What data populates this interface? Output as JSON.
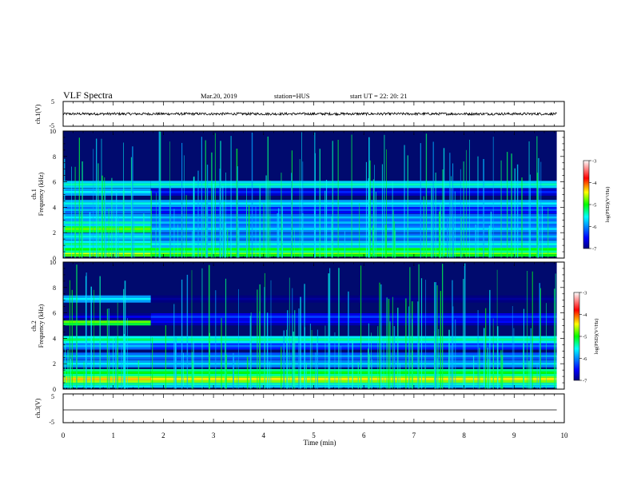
{
  "header": {
    "title": "VLF Spectra",
    "date": "Mar.20, 2019",
    "station": "station=HUS",
    "start": "start  UT =  22: 20: 21"
  },
  "chart_data": [
    {
      "type": "line",
      "name": "ch1-waveform",
      "ylabel": "ch.1(V)",
      "ylim": [
        -5,
        5
      ],
      "yticks": [
        "5",
        "-5"
      ],
      "x_range_min": [
        0,
        9.85
      ],
      "level_v": 0,
      "noise_amplitude_v": 0.5
    },
    {
      "type": "heatmap",
      "name": "ch1-spectrogram",
      "ylabel": "ch.1 Frequency (kHz)",
      "ylim": [
        0,
        10
      ],
      "yticks": [
        "0",
        "2",
        "4",
        "6",
        "8",
        "10"
      ],
      "colorbar": {
        "label": "log(PSD)(V²/Hz)",
        "ticks": [
          "-3",
          "-4",
          "-5",
          "-6",
          "-7"
        ],
        "range": [
          -7,
          -3
        ]
      },
      "bands_khz": [
        {
          "f": 0.3,
          "early": -4.5,
          "late": -4.7
        },
        {
          "f": 0.6,
          "early": -5.0,
          "late": -5.0
        },
        {
          "f": 1.0,
          "early": -5.3,
          "late": -5.5
        },
        {
          "f": 1.6,
          "early": -5.5,
          "late": -5.8
        },
        {
          "f": 2.2,
          "early": -4.8,
          "late": -5.7
        },
        {
          "f": 2.7,
          "early": -5.4,
          "late": -5.8
        },
        {
          "f": 3.1,
          "early": -5.6,
          "late": -5.8
        },
        {
          "f": 3.7,
          "early": -5.8,
          "late": -6.2
        },
        {
          "f": 4.2,
          "early": -5.5,
          "late": -5.6
        },
        {
          "f": 5.1,
          "early": -5.6,
          "late": -6.4
        },
        {
          "f": 5.7,
          "early": -5.4,
          "late": -5.4
        }
      ],
      "regime_change_min": 1.75
    },
    {
      "type": "heatmap",
      "name": "ch2-spectrogram",
      "ylabel": "ch.2 Frequency (kHz)",
      "ylim": [
        0,
        10
      ],
      "yticks": [
        "0",
        "2",
        "4",
        "6",
        "8",
        "10"
      ],
      "colorbar": {
        "label": "log(PSD)(V²/Hz)",
        "ticks": [
          "-3",
          "-4",
          "-5",
          "-6",
          "-7"
        ],
        "range": [
          -7,
          -3
        ]
      },
      "bands_khz": [
        {
          "f": 0.3,
          "early": -5.3,
          "late": -5.4
        },
        {
          "f": 0.7,
          "early": -4.3,
          "late": -4.4
        },
        {
          "f": 1.2,
          "early": -5.0,
          "late": -5.0
        },
        {
          "f": 1.9,
          "early": -5.6,
          "late": -5.7
        },
        {
          "f": 2.5,
          "early": -5.8,
          "late": -5.9
        },
        {
          "f": 3.3,
          "early": -5.8,
          "late": -6.1
        },
        {
          "f": 3.8,
          "early": -5.2,
          "late": -5.3
        },
        {
          "f": 5.2,
          "early": -4.8,
          "late": -6.5
        },
        {
          "f": 5.6,
          "early": -6.6,
          "late": -6.3
        },
        {
          "f": 7.0,
          "early": -5.6,
          "late": -6.9
        }
      ],
      "regime_change_min": 1.75
    },
    {
      "type": "line",
      "name": "ch3-waveform",
      "ylabel": "ch.3(V)",
      "ylim": [
        -5,
        5
      ],
      "yticks": [
        "5",
        "0",
        "-5"
      ],
      "x_range_min": [
        0,
        9.85
      ],
      "level_v": 0,
      "noise_amplitude_v": 0
    }
  ],
  "x_axis": {
    "label": "Time  (min)",
    "range": [
      0,
      10
    ],
    "ticks": [
      "0",
      "1",
      "2",
      "3",
      "4",
      "5",
      "6",
      "7",
      "8",
      "9",
      "10"
    ]
  },
  "colors": {
    "background": "#ffffff",
    "spectrogram_background": "#000a6e",
    "trace": "#000000"
  }
}
